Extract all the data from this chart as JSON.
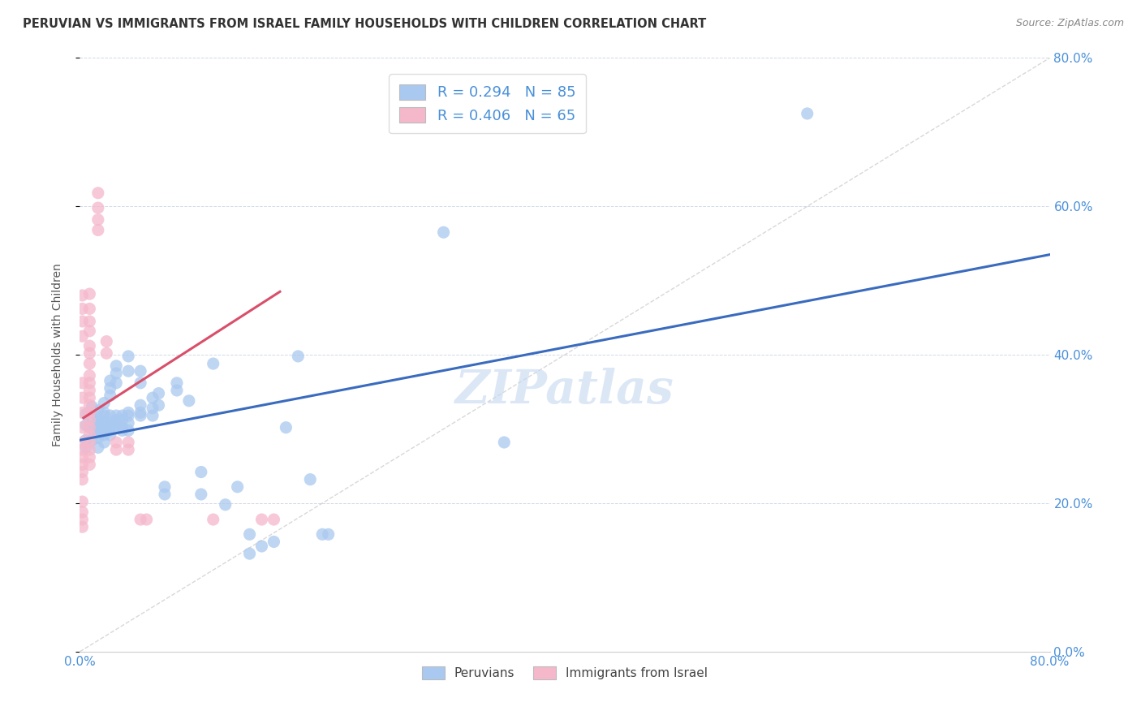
{
  "title": "PERUVIAN VS IMMIGRANTS FROM ISRAEL FAMILY HOUSEHOLDS WITH CHILDREN CORRELATION CHART",
  "source": "Source: ZipAtlas.com",
  "ylabel": "Family Households with Children",
  "xlim": [
    0.0,
    0.8
  ],
  "ylim": [
    0.0,
    0.8
  ],
  "yticks": [
    0.0,
    0.2,
    0.4,
    0.6,
    0.8
  ],
  "xticks_show": [
    0.0,
    0.8
  ],
  "legend_labels": [
    "Peruvians",
    "Immigrants from Israel"
  ],
  "blue_scatter_color": "#aac9f0",
  "pink_scatter_color": "#f5b8cb",
  "blue_line_color": "#3a6bbf",
  "pink_line_color": "#d94f6a",
  "diag_line_color": "#c8c8c8",
  "right_tick_color": "#4a90d9",
  "watermark": "ZIPatlas",
  "blue_R": 0.294,
  "blue_N": 85,
  "pink_R": 0.406,
  "pink_N": 65,
  "blue_line_x": [
    0.0,
    0.8
  ],
  "blue_line_y": [
    0.285,
    0.535
  ],
  "pink_line_x": [
    0.003,
    0.165
  ],
  "pink_line_y": [
    0.315,
    0.485
  ],
  "blue_points": [
    [
      0.005,
      0.305
    ],
    [
      0.005,
      0.285
    ],
    [
      0.005,
      0.32
    ],
    [
      0.005,
      0.275
    ],
    [
      0.01,
      0.315
    ],
    [
      0.01,
      0.3
    ],
    [
      0.01,
      0.285
    ],
    [
      0.01,
      0.33
    ],
    [
      0.015,
      0.305
    ],
    [
      0.015,
      0.295
    ],
    [
      0.015,
      0.31
    ],
    [
      0.015,
      0.315
    ],
    [
      0.015,
      0.325
    ],
    [
      0.015,
      0.3
    ],
    [
      0.015,
      0.288
    ],
    [
      0.015,
      0.275
    ],
    [
      0.02,
      0.305
    ],
    [
      0.02,
      0.318
    ],
    [
      0.02,
      0.292
    ],
    [
      0.02,
      0.308
    ],
    [
      0.02,
      0.282
    ],
    [
      0.02,
      0.335
    ],
    [
      0.02,
      0.322
    ],
    [
      0.02,
      0.298
    ],
    [
      0.025,
      0.302
    ],
    [
      0.025,
      0.318
    ],
    [
      0.025,
      0.308
    ],
    [
      0.025,
      0.298
    ],
    [
      0.025,
      0.355
    ],
    [
      0.025,
      0.365
    ],
    [
      0.025,
      0.345
    ],
    [
      0.025,
      0.292
    ],
    [
      0.03,
      0.312
    ],
    [
      0.03,
      0.302
    ],
    [
      0.03,
      0.318
    ],
    [
      0.03,
      0.308
    ],
    [
      0.03,
      0.375
    ],
    [
      0.03,
      0.385
    ],
    [
      0.03,
      0.362
    ],
    [
      0.035,
      0.318
    ],
    [
      0.035,
      0.312
    ],
    [
      0.035,
      0.302
    ],
    [
      0.035,
      0.298
    ],
    [
      0.04,
      0.322
    ],
    [
      0.04,
      0.318
    ],
    [
      0.04,
      0.308
    ],
    [
      0.04,
      0.298
    ],
    [
      0.04,
      0.378
    ],
    [
      0.04,
      0.398
    ],
    [
      0.05,
      0.332
    ],
    [
      0.05,
      0.322
    ],
    [
      0.05,
      0.318
    ],
    [
      0.05,
      0.362
    ],
    [
      0.05,
      0.378
    ],
    [
      0.06,
      0.342
    ],
    [
      0.06,
      0.328
    ],
    [
      0.06,
      0.318
    ],
    [
      0.065,
      0.332
    ],
    [
      0.065,
      0.348
    ],
    [
      0.07,
      0.222
    ],
    [
      0.07,
      0.212
    ],
    [
      0.08,
      0.352
    ],
    [
      0.08,
      0.362
    ],
    [
      0.09,
      0.338
    ],
    [
      0.1,
      0.242
    ],
    [
      0.1,
      0.212
    ],
    [
      0.11,
      0.388
    ],
    [
      0.12,
      0.198
    ],
    [
      0.13,
      0.222
    ],
    [
      0.14,
      0.132
    ],
    [
      0.14,
      0.158
    ],
    [
      0.15,
      0.142
    ],
    [
      0.16,
      0.148
    ],
    [
      0.17,
      0.302
    ],
    [
      0.18,
      0.398
    ],
    [
      0.19,
      0.232
    ],
    [
      0.2,
      0.158
    ],
    [
      0.205,
      0.158
    ],
    [
      0.3,
      0.565
    ],
    [
      0.35,
      0.282
    ],
    [
      0.6,
      0.725
    ]
  ],
  "pink_points": [
    [
      0.002,
      0.48
    ],
    [
      0.002,
      0.462
    ],
    [
      0.002,
      0.445
    ],
    [
      0.002,
      0.425
    ],
    [
      0.002,
      0.362
    ],
    [
      0.002,
      0.342
    ],
    [
      0.002,
      0.322
    ],
    [
      0.002,
      0.302
    ],
    [
      0.002,
      0.282
    ],
    [
      0.002,
      0.272
    ],
    [
      0.002,
      0.262
    ],
    [
      0.002,
      0.252
    ],
    [
      0.002,
      0.242
    ],
    [
      0.002,
      0.232
    ],
    [
      0.002,
      0.202
    ],
    [
      0.002,
      0.188
    ],
    [
      0.002,
      0.178
    ],
    [
      0.002,
      0.168
    ],
    [
      0.008,
      0.482
    ],
    [
      0.008,
      0.462
    ],
    [
      0.008,
      0.445
    ],
    [
      0.008,
      0.432
    ],
    [
      0.008,
      0.412
    ],
    [
      0.008,
      0.402
    ],
    [
      0.008,
      0.388
    ],
    [
      0.008,
      0.372
    ],
    [
      0.008,
      0.362
    ],
    [
      0.008,
      0.352
    ],
    [
      0.008,
      0.342
    ],
    [
      0.008,
      0.332
    ],
    [
      0.008,
      0.322
    ],
    [
      0.008,
      0.312
    ],
    [
      0.008,
      0.302
    ],
    [
      0.008,
      0.292
    ],
    [
      0.008,
      0.282
    ],
    [
      0.008,
      0.272
    ],
    [
      0.008,
      0.262
    ],
    [
      0.008,
      0.252
    ],
    [
      0.015,
      0.618
    ],
    [
      0.015,
      0.598
    ],
    [
      0.015,
      0.582
    ],
    [
      0.015,
      0.568
    ],
    [
      0.022,
      0.418
    ],
    [
      0.022,
      0.402
    ],
    [
      0.03,
      0.282
    ],
    [
      0.03,
      0.272
    ],
    [
      0.04,
      0.282
    ],
    [
      0.04,
      0.272
    ],
    [
      0.05,
      0.178
    ],
    [
      0.055,
      0.178
    ],
    [
      0.11,
      0.178
    ],
    [
      0.15,
      0.178
    ],
    [
      0.16,
      0.178
    ]
  ]
}
